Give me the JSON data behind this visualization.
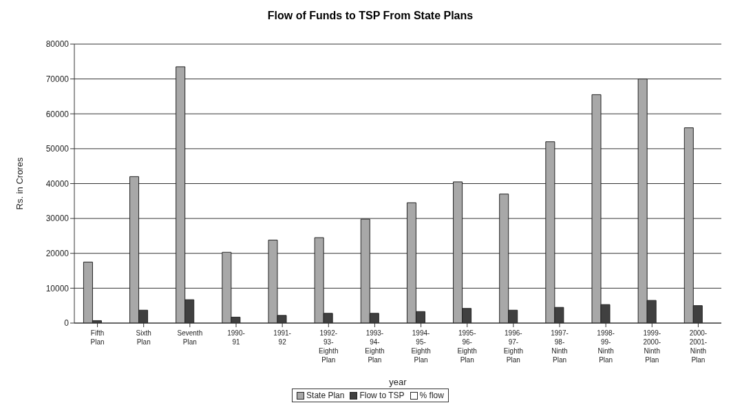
{
  "chart_data": {
    "type": "bar",
    "title": "Flow of Funds to TSP From State Plans",
    "xlabel": "year",
    "ylabel": "Rs. in Crores",
    "categories": [
      "Fifth Plan",
      "Sixth Plan",
      "Seventh Plan",
      "1990-91",
      "1991-92",
      "1992-93-Eighth Plan",
      "1993-94-Eighth Plan",
      "1994-95-Eighth Plan",
      "1995-96-Eighth Plan",
      "1996-97-Eighth Plan",
      "1997-98-Ninth Plan",
      "1998-99-Ninth Plan",
      "1999-2000-Ninth Plan",
      "2000-2001-Ninth Plan"
    ],
    "series": [
      {
        "name": "State Plan",
        "color": "#a8a8a8",
        "values": [
          17500,
          42000,
          73500,
          20300,
          23800,
          24500,
          29800,
          34500,
          40500,
          37000,
          52000,
          65500,
          70000,
          56000
        ]
      },
      {
        "name": "Flow to TSP",
        "color": "#404040",
        "values": [
          700,
          3700,
          6700,
          1700,
          2200,
          2800,
          2800,
          3300,
          4200,
          3700,
          4500,
          5300,
          6500,
          5000
        ]
      },
      {
        "name": "% flow",
        "color": "#ffffff",
        "values": [
          null,
          null,
          null,
          null,
          null,
          null,
          null,
          null,
          null,
          null,
          null,
          null,
          null,
          null
        ]
      }
    ],
    "ylim": [
      0,
      80000
    ],
    "yticks": [
      0,
      10000,
      20000,
      30000,
      40000,
      50000,
      60000,
      70000,
      80000
    ],
    "grid": "y",
    "legend": "bottom"
  }
}
